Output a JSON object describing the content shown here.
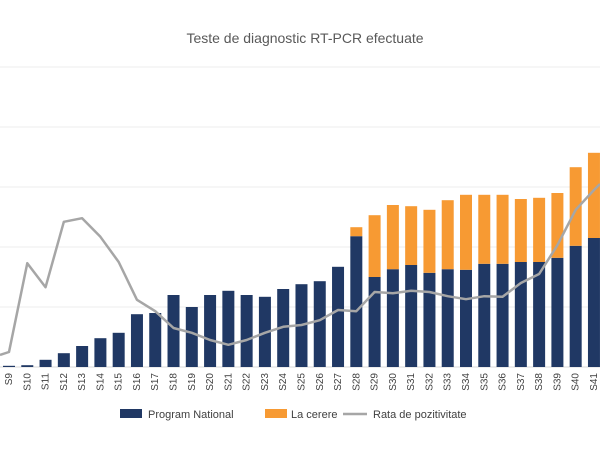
{
  "chart_data": {
    "type": "bar",
    "stacked": true,
    "title": "Teste de diagnostic RT-PCR efectuate",
    "xlabel": "",
    "ylabel": "",
    "value_units": "gridline intervals (y-axis labels not visible)",
    "ylim": [
      0,
      5
    ],
    "grid": true,
    "legend_placement": "bottom",
    "categories": [
      "S9",
      "S10",
      "S11",
      "S12",
      "S13",
      "S14",
      "S15",
      "S16",
      "S17",
      "S18",
      "S19",
      "S20",
      "S21",
      "S22",
      "S23",
      "S24",
      "S25",
      "S26",
      "S27",
      "S28",
      "S29",
      "S30",
      "S31",
      "S32",
      "S33",
      "S34",
      "S35",
      "S36",
      "S37",
      "S38",
      "S39",
      "S40",
      "S41"
    ],
    "series": [
      {
        "name": "Program National",
        "kind": "bar",
        "color": "#203864",
        "values": [
          0.02,
          0.03,
          0.12,
          0.23,
          0.35,
          0.48,
          0.57,
          0.88,
          0.9,
          1.2,
          1.0,
          1.2,
          1.27,
          1.2,
          1.17,
          1.3,
          1.38,
          1.43,
          1.67,
          2.18,
          1.5,
          1.63,
          1.7,
          1.57,
          1.63,
          1.62,
          1.72,
          1.72,
          1.75,
          1.75,
          1.82,
          2.02,
          2.15
        ]
      },
      {
        "name": "La cerere",
        "kind": "bar",
        "color": "#F79A33",
        "values": [
          0,
          0,
          0,
          0,
          0,
          0,
          0,
          0,
          0,
          0,
          0,
          0,
          0,
          0,
          0,
          0,
          0,
          0,
          0,
          0.15,
          1.03,
          1.07,
          0.98,
          1.05,
          1.15,
          1.25,
          1.15,
          1.15,
          1.05,
          1.07,
          1.08,
          1.31,
          1.42
        ]
      },
      {
        "name": "Rata de pozitivitate",
        "kind": "line",
        "color": "#A6A6A6",
        "values": [
          0.25,
          1.73,
          1.33,
          2.42,
          2.48,
          2.17,
          1.75,
          1.12,
          0.93,
          0.65,
          0.57,
          0.45,
          0.37,
          0.45,
          0.57,
          0.67,
          0.7,
          0.78,
          0.95,
          0.93,
          1.25,
          1.23,
          1.27,
          1.25,
          1.18,
          1.13,
          1.18,
          1.17,
          1.4,
          1.55,
          2.03,
          2.62,
          2.95
        ]
      }
    ]
  }
}
